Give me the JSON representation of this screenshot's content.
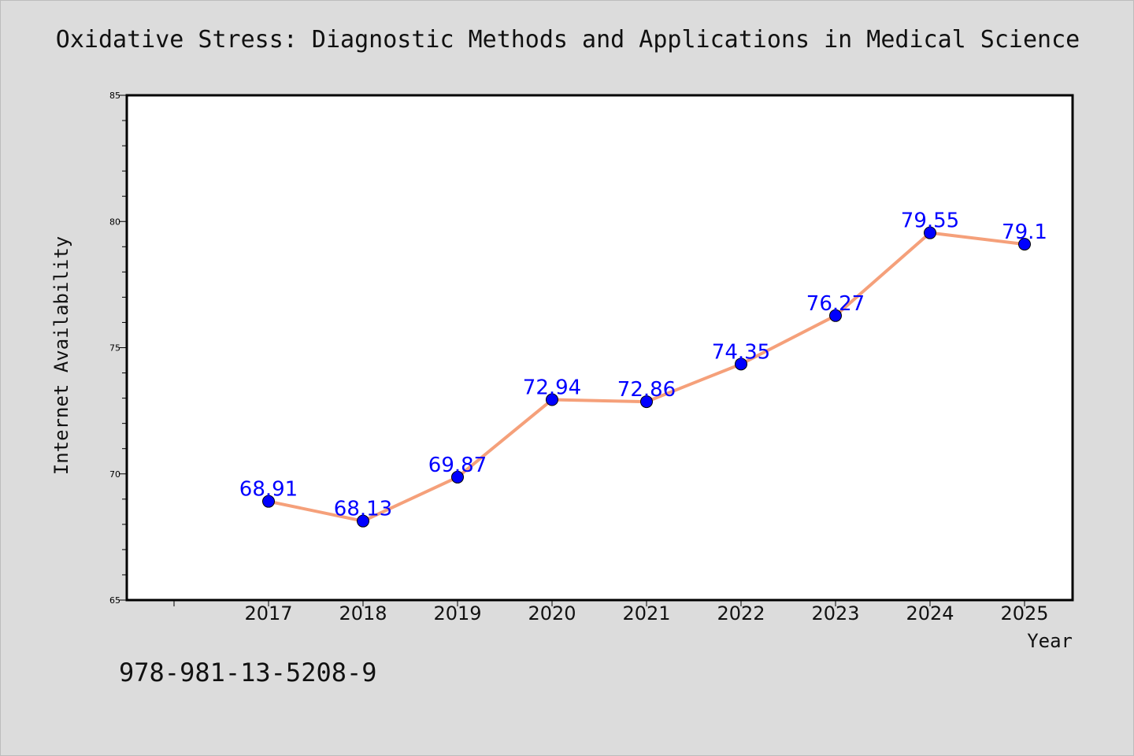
{
  "chart_data": {
    "type": "line",
    "title": "Oxidative Stress: Diagnostic Methods and Applications in Medical Science",
    "xlabel": "Year",
    "ylabel": "Internet Availability",
    "categories": [
      "2017",
      "2018",
      "2019",
      "2020",
      "2021",
      "2022",
      "2023",
      "2024",
      "2025"
    ],
    "values": [
      68.91,
      68.13,
      69.87,
      72.94,
      72.86,
      74.35,
      76.27,
      79.55,
      79.1
    ],
    "data_labels": [
      "68.91",
      "68.13",
      "69.87",
      "72.94",
      "72.86",
      "74.35",
      "76.27",
      "79.55",
      "79.1"
    ],
    "ylim": [
      65,
      85
    ],
    "y_ticks": [
      "65",
      "70",
      "75",
      "80",
      "85"
    ],
    "grid": false,
    "colors": {
      "line": "#f5a07a",
      "marker": "#0000ff",
      "label": "#0000ff",
      "plot_background": "#ffffff",
      "page_background": "#dcdcdc"
    }
  },
  "footer": {
    "isbn": "978-981-13-5208-9"
  }
}
